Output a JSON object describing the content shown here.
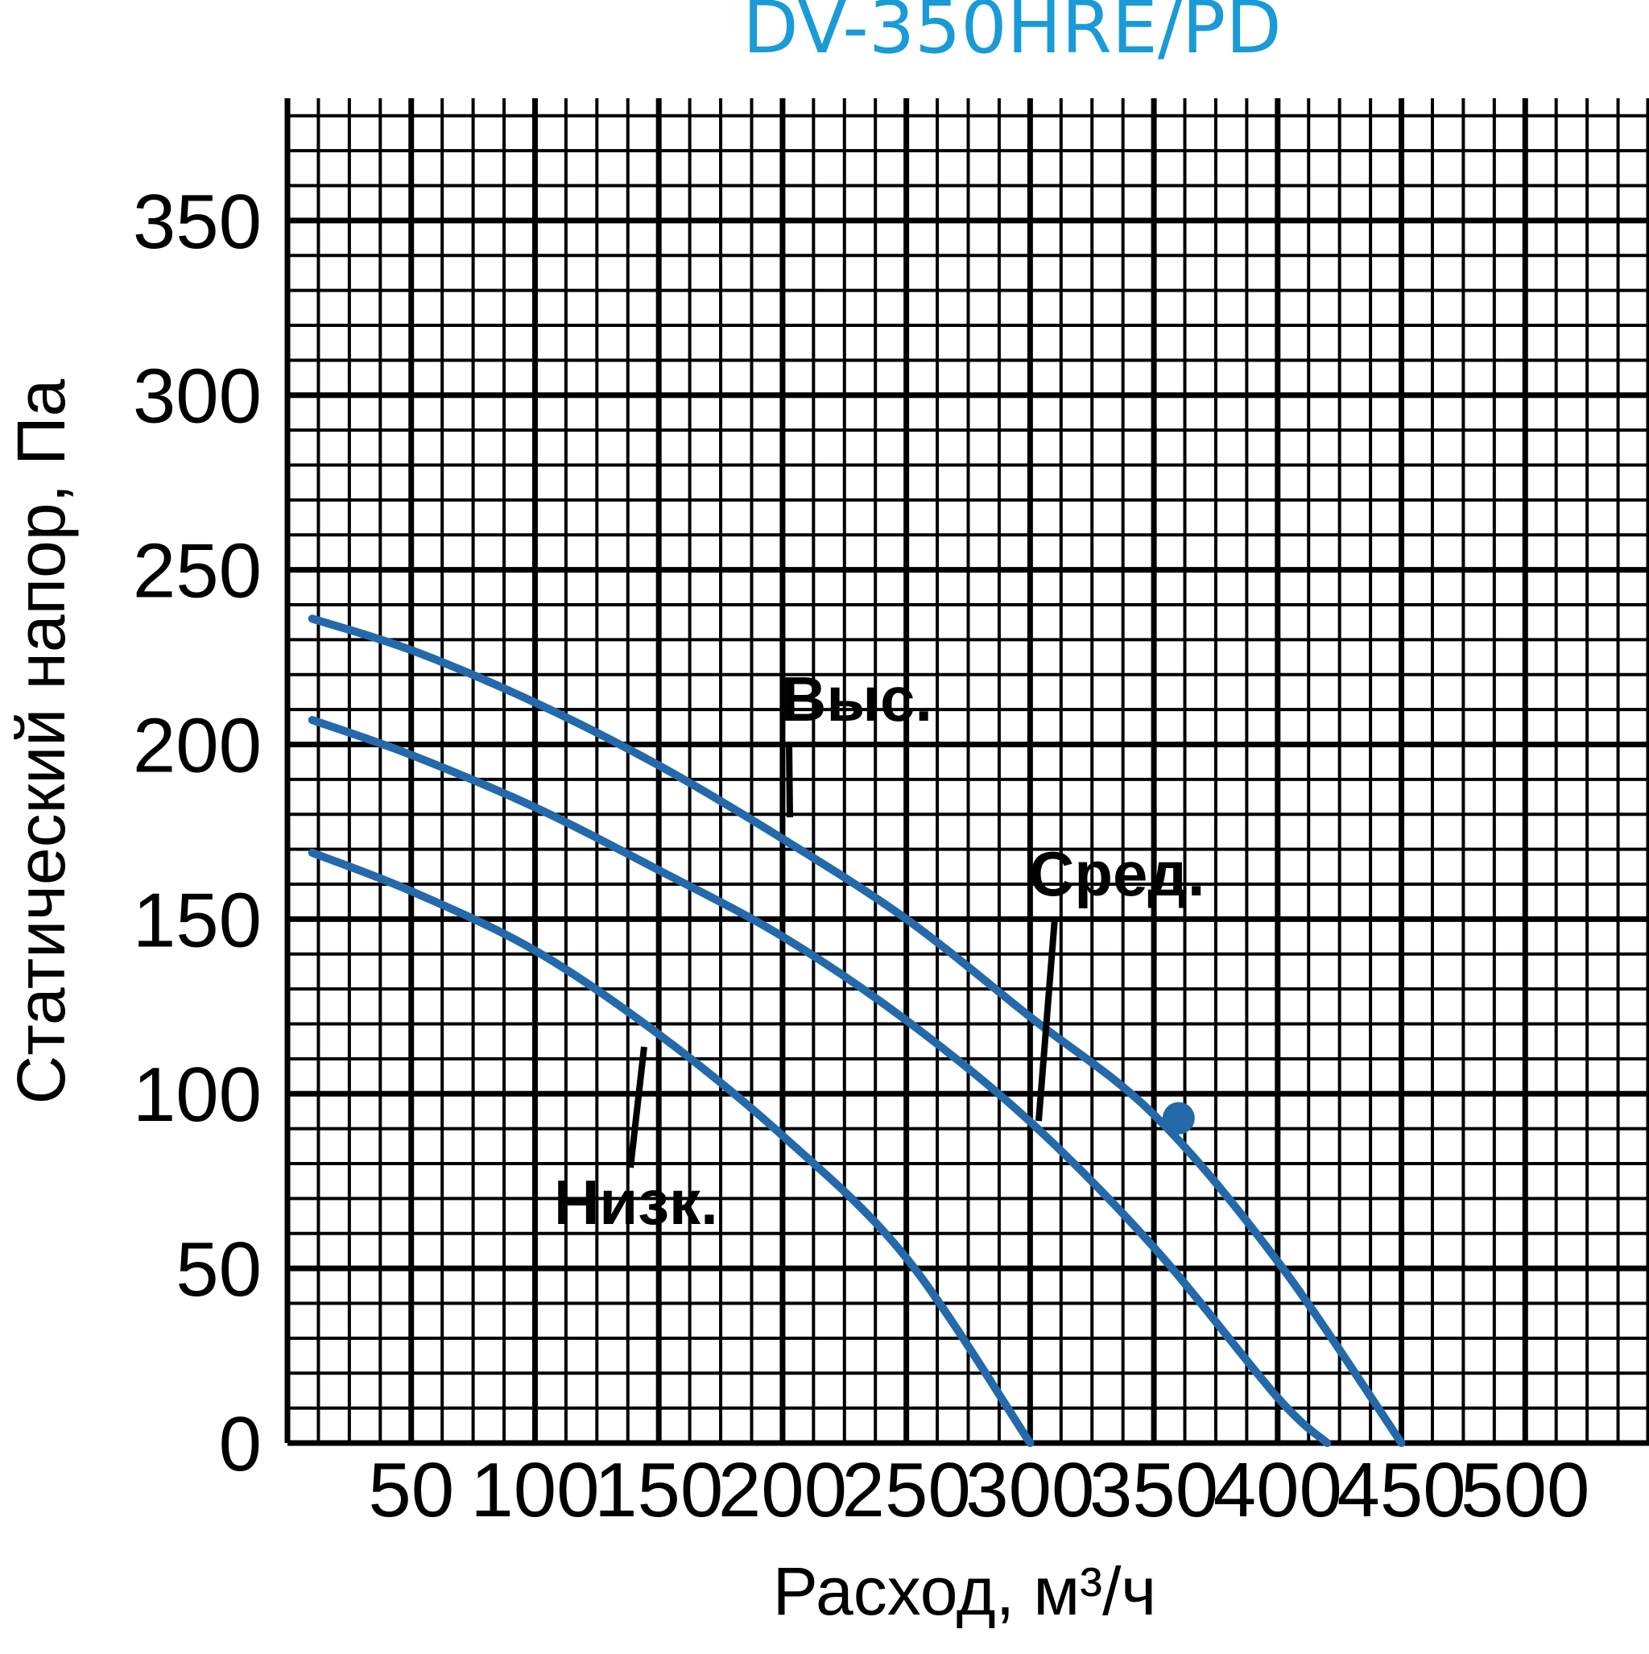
{
  "chart_data": {
    "type": "line",
    "title": "DV-350HRE/PD",
    "xlabel": "Расход, м³/ч",
    "ylabel": "Статический напор, Па",
    "xlim": [
      0,
      550
    ],
    "ylim": [
      0,
      385
    ],
    "xticks": [
      "50",
      "100",
      "150",
      "200",
      "250",
      "300",
      "350",
      "400",
      "450",
      "500"
    ],
    "yticks": [
      "0",
      "50",
      "100",
      "150",
      "200",
      "250",
      "300",
      "350"
    ],
    "grid": true,
    "line_color": "#2469aa",
    "title_color": "#1a9ad6",
    "series": [
      {
        "name": "Выс.",
        "x": [
          10,
          50,
          100,
          150,
          200,
          250,
          300,
          350,
          400,
          450
        ],
        "y": [
          236,
          227,
          212,
          194,
          173,
          150,
          122,
          94,
          52,
          0
        ]
      },
      {
        "name": "Сред.",
        "x": [
          10,
          50,
          100,
          150,
          200,
          250,
          300,
          350,
          400,
          420
        ],
        "y": [
          207,
          197,
          182,
          164,
          145,
          121,
          92,
          56,
          13,
          0
        ]
      },
      {
        "name": "Низк.",
        "x": [
          10,
          50,
          100,
          150,
          200,
          250,
          300
        ],
        "y": [
          169,
          158,
          141,
          117,
          88,
          53,
          0
        ]
      }
    ],
    "marker": {
      "x": 360,
      "y": 93
    },
    "annotations": [
      "Выс.",
      "Сред.",
      "Низк."
    ]
  }
}
